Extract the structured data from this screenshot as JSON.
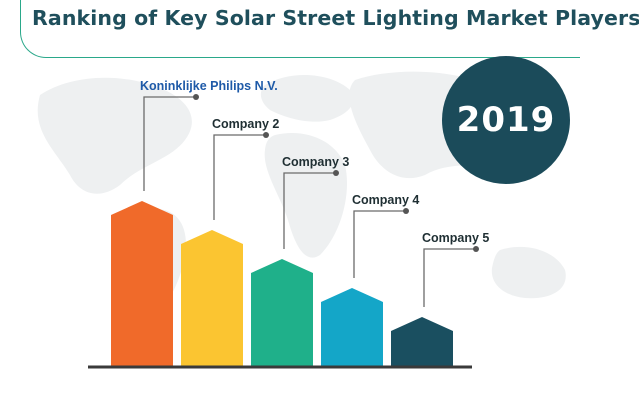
{
  "title": "Ranking of Key Solar Street Lighting Market Players",
  "year": "2019",
  "colors": {
    "title": "#1f4f5c",
    "accent_line": "#2aa88a",
    "badge": "#1b4b5a",
    "leader_label": "#1e5aa8",
    "label": "#1f2f33",
    "connector": "#6b6b6b",
    "baseline": "#3a3a3a",
    "map": "#eef0f1"
  },
  "chart_data": {
    "type": "bar",
    "title": "Ranking of Key Solar Street Lighting Market Players",
    "categories": [
      "Koninklijke Philips N.V.",
      "Company 2",
      "Company 3",
      "Company 4",
      "Company 5"
    ],
    "values": [
      1,
      2,
      3,
      4,
      5
    ],
    "value_meaning": "rank",
    "bar_colors": [
      "#f06a2a",
      "#fbc531",
      "#1fb08a",
      "#14a6c8",
      "#1a4f60"
    ],
    "grid": false,
    "legend": "none"
  }
}
